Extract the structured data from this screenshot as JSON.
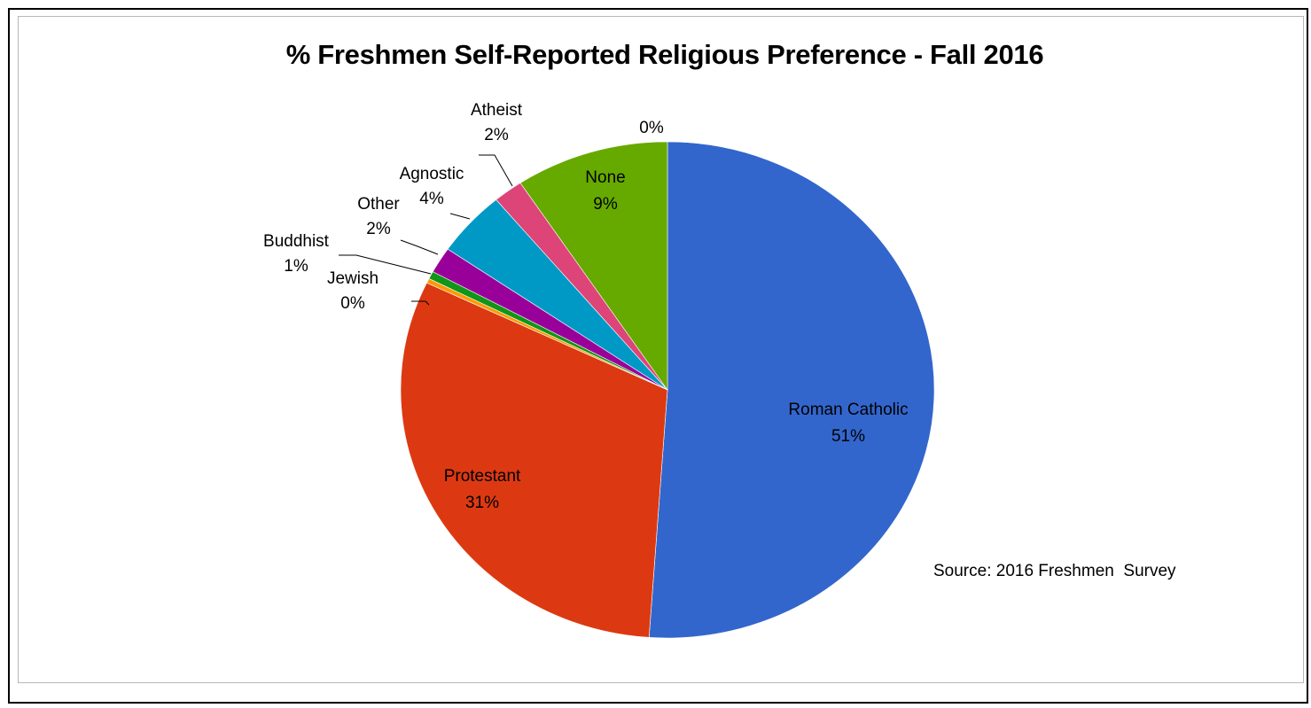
{
  "chart_data": {
    "type": "pie",
    "title": "% Freshmen Self-Reported Religious Preference - Fall 2016",
    "start_angle_deg": 0,
    "direction": "clockwise",
    "slices": [
      {
        "label": "Roman Catholic",
        "pct_label": "51%",
        "value": 51.1,
        "color": "#3366cc",
        "label_inside": true
      },
      {
        "label": "Protestant",
        "pct_label": "31%",
        "value": 31.0,
        "color": "#dc3912",
        "label_inside": true
      },
      {
        "label": "Jewish",
        "pct_label": "0%",
        "value": 0.3,
        "color": "#ff9900",
        "label_inside": false
      },
      {
        "label": "Buddhist",
        "pct_label": "1%",
        "value": 0.5,
        "color": "#109618",
        "label_inside": false
      },
      {
        "label": "Other",
        "pct_label": "2%",
        "value": 1.7,
        "color": "#990099",
        "label_inside": false
      },
      {
        "label": "Agnostic",
        "pct_label": "4%",
        "value": 4.3,
        "color": "#0099c6",
        "label_inside": false
      },
      {
        "label": "Atheist",
        "pct_label": "2%",
        "value": 1.8,
        "color": "#dd4477",
        "label_inside": false
      },
      {
        "label": "None",
        "pct_label": "9%",
        "value": 9.3,
        "color": "#66aa00",
        "label_inside": true
      },
      {
        "label": "",
        "pct_label": "0%",
        "value": 0.0,
        "color": "#b82e2e",
        "label_inside": false
      }
    ],
    "annotation": "Source: 2016 Freshmen  Survey"
  }
}
